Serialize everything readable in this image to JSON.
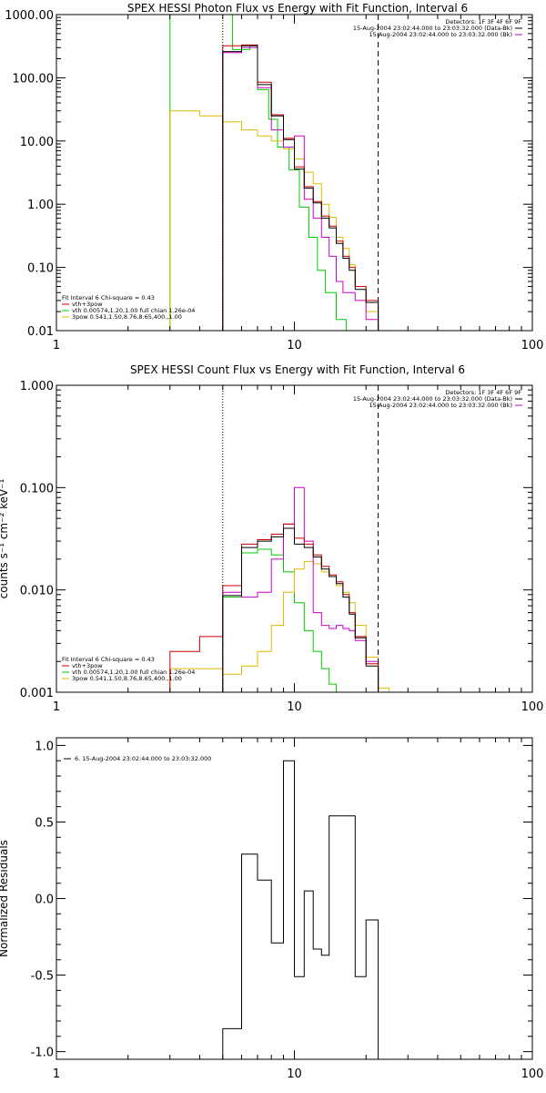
{
  "chart_data": [
    {
      "id": "photon",
      "type": "line",
      "title": "SPEX HESSI Photon Flux vs Energy with Fit Function, Interval 6",
      "xscale": "log",
      "yscale": "log",
      "xlim": [
        1,
        100
      ],
      "ylim": [
        0.01,
        1000
      ],
      "x_ticks": [
        1,
        10,
        100
      ],
      "x_tick_labels": [
        "1",
        "10",
        "100"
      ],
      "y_ticks": [
        0.01,
        0.1,
        1,
        10,
        100,
        1000
      ],
      "y_tick_labels": [
        "0.01",
        "0.10",
        "1.00",
        "10.00",
        "100.00",
        "1000.00"
      ],
      "ylabel": "",
      "ref_lines": [
        {
          "x": 5.0,
          "style": "dotted"
        },
        {
          "x": 22.5,
          "style": "dashed"
        }
      ],
      "legend_top": {
        "position": "top-right",
        "header": "Detectors: 1F 3F 4F 6F 9F",
        "entries": [
          {
            "label": "15-Aug-2004 23:02:44.000 to 23:03:32.000 (Data-Bk)",
            "color": "#000000"
          },
          {
            "label": "15-Aug-2004 23:02:44.000 to 23:03:32.000 (Bk)",
            "color": "#cc00cc"
          }
        ]
      },
      "legend_bottom": {
        "position": "bottom-left",
        "header": "Fit Interval 6   Chi-square = 0.43",
        "entries": [
          {
            "label": "vth+3pow",
            "color": "#cc0000"
          },
          {
            "label": "vth 0.00574,1.20,1.00  full chian 1.26e-04",
            "color": "#00cc00"
          },
          {
            "label": "3pow 0.541,1.50,8.76,8.65,400.,1.00",
            "color": "#ddbb00"
          }
        ]
      },
      "series": [
        {
          "color": "#00cc00",
          "edges": [
            3.0,
            5.0,
            5.5,
            6.0,
            6.5,
            7.0,
            7.8,
            8.5,
            9.5,
            10.5,
            11.5,
            12.5,
            13.5,
            15.0,
            16.5,
            18.0
          ],
          "values": [
            1000,
            1000,
            280,
            280,
            320,
            65,
            22,
            8,
            3.5,
            0.9,
            0.3,
            0.09,
            0.04,
            0.015,
            0.01
          ]
        },
        {
          "color": "#ddbb00",
          "edges": [
            3.0,
            4.0,
            5.0,
            6.0,
            7.0,
            8.0,
            9.0,
            10.0,
            11.0,
            12.0,
            13.0,
            14.0,
            15.0,
            16.0,
            17.0,
            18.0,
            20.0,
            22.5
          ],
          "values": [
            30,
            25,
            20,
            15,
            12,
            10,
            7.5,
            5.2,
            3.2,
            2.1,
            1.0,
            0.62,
            0.3,
            0.2,
            0.11,
            0.05,
            0.02
          ]
        },
        {
          "color": "#cc00cc",
          "edges": [
            5.0,
            6.0,
            7.0,
            8.0,
            9.0,
            10.0,
            11.0,
            12.0,
            13.0,
            14.0,
            15.0,
            16.0,
            17.0,
            18.0,
            20.0,
            22.5
          ],
          "values": [
            250,
            300,
            70,
            15,
            8,
            12,
            1.2,
            0.6,
            0.3,
            0.15,
            0.06,
            0.04,
            0.04,
            0.03,
            0.015
          ]
        },
        {
          "color": "#cc0000",
          "edges": [
            5.0,
            6.0,
            7.0,
            8.0,
            9.0,
            10.0,
            11.0,
            12.0,
            13.0,
            14.0,
            15.0,
            16.0,
            17.0,
            18.0,
            20.0,
            22.5
          ],
          "values": [
            320,
            330,
            85,
            26,
            11,
            3.9,
            1.9,
            1.1,
            0.65,
            0.45,
            0.26,
            0.15,
            0.1,
            0.05,
            0.03
          ]
        },
        {
          "color": "#000000",
          "edges": [
            5.0,
            6.0,
            7.0,
            8.0,
            9.0,
            10.0,
            11.0,
            12.0,
            13.0,
            14.0,
            15.0,
            16.0,
            17.0,
            18.0,
            20.0,
            22.5
          ],
          "values": [
            260,
            320,
            78,
            25,
            10.5,
            3.6,
            1.8,
            1.05,
            0.6,
            0.42,
            0.24,
            0.14,
            0.09,
            0.045,
            0.028
          ]
        }
      ]
    },
    {
      "id": "count",
      "type": "line",
      "title": "SPEX HESSI Count Flux vs Energy with Fit Function, Interval 6",
      "xscale": "log",
      "yscale": "log",
      "xlim": [
        1,
        100
      ],
      "ylim": [
        0.001,
        1
      ],
      "x_ticks": [
        1,
        10,
        100
      ],
      "x_tick_labels": [
        "1",
        "10",
        "100"
      ],
      "y_ticks": [
        0.001,
        0.01,
        0.1,
        1
      ],
      "y_tick_labels": [
        "0.001",
        "0.010",
        "0.100",
        "1.000"
      ],
      "ylabel": "counts s⁻¹ cm⁻² keV⁻¹",
      "ref_lines": [
        {
          "x": 5.0,
          "style": "dotted"
        },
        {
          "x": 22.5,
          "style": "dashed"
        }
      ],
      "legend_top": {
        "position": "top-right",
        "header": "Detectors: 1F 3F 4F 6F 9F",
        "entries": [
          {
            "label": "15-Aug-2004 23:02:44.000 to 23:03:32.000 (Data-Bk)",
            "color": "#000000"
          },
          {
            "label": "15-Aug-2004 23:02:44.000 to 23:03:32.000 (Bk)",
            "color": "#cc00cc"
          }
        ]
      },
      "legend_bottom": {
        "position": "bottom-left",
        "header": "Fit Interval 6   Chi-square = 0.43",
        "entries": [
          {
            "label": "vth+3pow",
            "color": "#cc0000"
          },
          {
            "label": "vth 0.00574,1.20,1.00  full chian 1.26e-04",
            "color": "#00cc00"
          },
          {
            "label": "3pow 0.541,1.50,8.76,8.65,400.,1.00",
            "color": "#ddbb00"
          }
        ]
      },
      "series": [
        {
          "color": "#00cc00",
          "edges": [
            3.0,
            4.0,
            5.0,
            6.0,
            7.0,
            8.0,
            9.0,
            10.0,
            11.0,
            12.0,
            13.0,
            14.0,
            15.0,
            16.0
          ],
          "values": [
            0.0009,
            0.0009,
            0.0085,
            0.023,
            0.025,
            0.022,
            0.015,
            0.0075,
            0.004,
            0.0025,
            0.0017,
            0.0012,
            0.001
          ]
        },
        {
          "color": "#ddbb00",
          "edges": [
            3.0,
            4.0,
            5.0,
            6.0,
            7.0,
            8.0,
            9.0,
            10.0,
            11.0,
            12.0,
            13.0,
            14.0,
            15.0,
            16.0,
            17.0,
            18.0,
            20.0,
            22.5,
            25.0
          ],
          "values": [
            0.0017,
            0.0017,
            0.0015,
            0.0018,
            0.0025,
            0.0045,
            0.0095,
            0.016,
            0.019,
            0.018,
            0.015,
            0.0135,
            0.011,
            0.0095,
            0.0075,
            0.0045,
            0.0022,
            0.0011
          ]
        },
        {
          "color": "#cc00cc",
          "edges": [
            5.0,
            6.0,
            7.0,
            8.0,
            9.0,
            10.0,
            11.0,
            12.0,
            13.0,
            14.0,
            15.0,
            16.0,
            17.0,
            18.0,
            20.0,
            22.5
          ],
          "values": [
            0.0095,
            0.0085,
            0.0095,
            0.02,
            0.044,
            0.1,
            0.03,
            0.006,
            0.0045,
            0.0042,
            0.0045,
            0.0042,
            0.004,
            0.0032,
            0.002
          ]
        },
        {
          "color": "#cc0000",
          "edges": [
            3.0,
            4.0,
            5.0,
            6.0,
            7.0,
            8.0,
            9.0,
            10.0,
            11.0,
            12.0,
            13.0,
            14.0,
            15.0,
            16.0,
            17.0,
            18.0,
            20.0,
            22.5
          ],
          "values": [
            0.0025,
            0.0035,
            0.011,
            0.028,
            0.031,
            0.035,
            0.044,
            0.032,
            0.028,
            0.022,
            0.017,
            0.014,
            0.012,
            0.009,
            0.006,
            0.0035,
            0.0019
          ]
        },
        {
          "color": "#000000",
          "edges": [
            5.0,
            6.0,
            7.0,
            8.0,
            9.0,
            10.0,
            11.0,
            12.0,
            13.0,
            14.0,
            15.0,
            16.0,
            17.0,
            18.0,
            20.0,
            22.5
          ],
          "values": [
            0.0088,
            0.026,
            0.03,
            0.033,
            0.04,
            0.028,
            0.026,
            0.021,
            0.016,
            0.0135,
            0.0115,
            0.0085,
            0.0058,
            0.0034,
            0.0018
          ]
        }
      ]
    },
    {
      "id": "residuals",
      "type": "line",
      "title": "",
      "xscale": "log",
      "yscale": "linear",
      "xlim": [
        1,
        100
      ],
      "ylim": [
        -1.05,
        1.05
      ],
      "x_ticks": [
        1,
        10,
        100
      ],
      "x_tick_labels": [
        "1",
        "10",
        "100"
      ],
      "y_ticks": [
        -1.0,
        -0.5,
        0.0,
        0.5,
        1.0
      ],
      "y_tick_labels": [
        "-1.0",
        "-0.5",
        "0.0",
        "0.5",
        "1.0"
      ],
      "ylabel": "Normalized Residuals",
      "legend_top": {
        "position": "top-left",
        "header": "",
        "entries": [
          {
            "label": "6. 15-Aug-2004 23:02:44.000 to 23:03:32.000",
            "color": "#000000"
          }
        ]
      },
      "series": [
        {
          "color": "#000000",
          "edges": [
            5.0,
            6.0,
            7.0,
            8.0,
            9.0,
            10.0,
            11.0,
            12.0,
            13.0,
            14.0,
            16.0,
            18.0,
            20.0,
            22.5
          ],
          "values": [
            -0.85,
            0.29,
            0.12,
            -0.29,
            0.9,
            -0.51,
            0.05,
            -0.33,
            -0.37,
            0.54,
            0.54,
            -0.51,
            -0.14
          ]
        }
      ]
    }
  ]
}
